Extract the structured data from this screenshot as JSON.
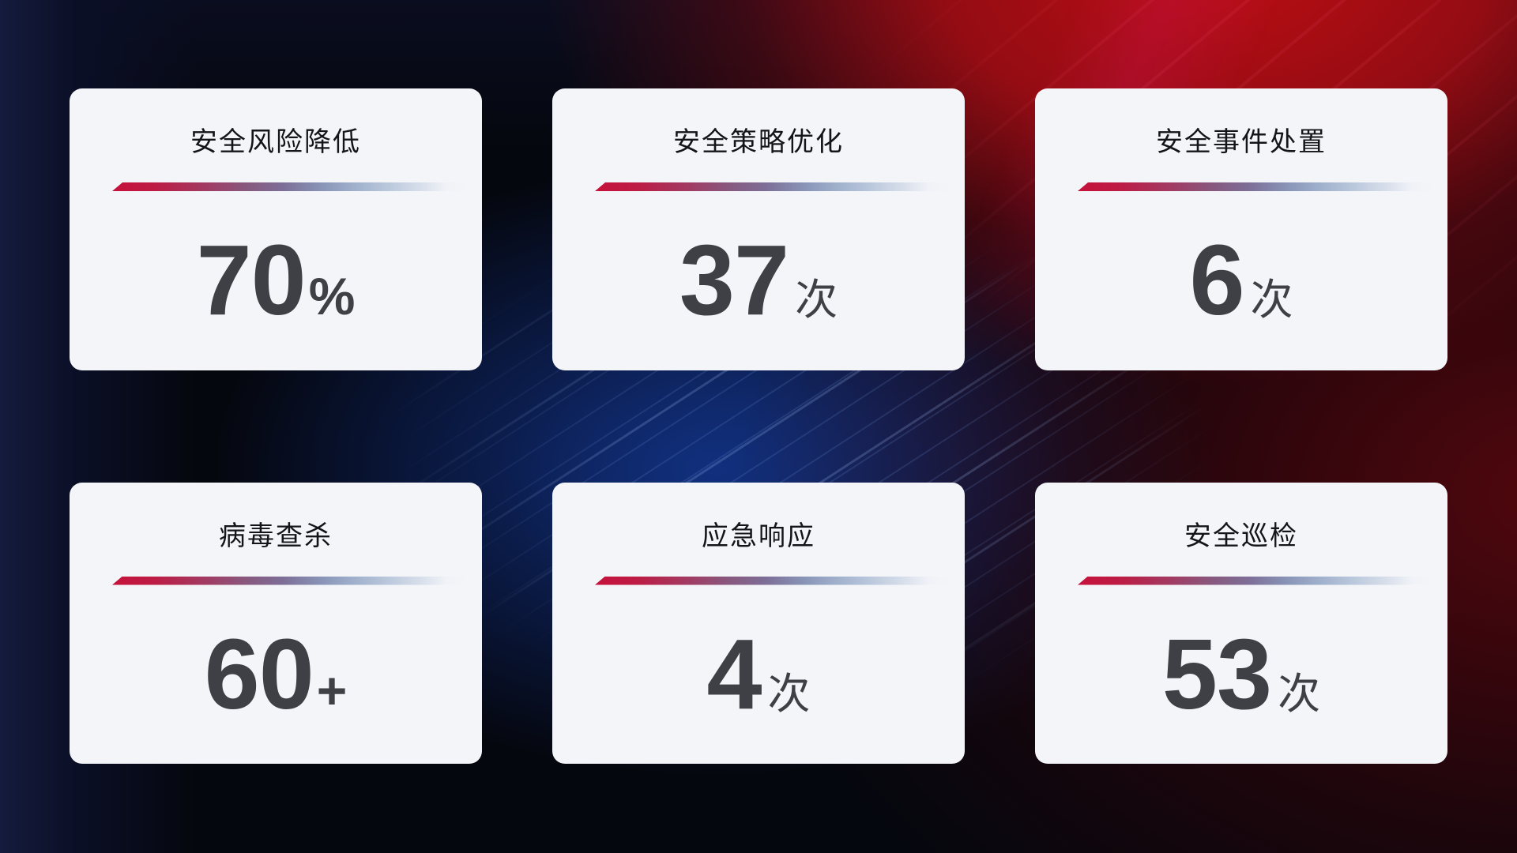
{
  "style": {
    "card_background": "#f4f5f8",
    "title_color": "#141519",
    "value_color": "#3e4046",
    "divider_gradient_start": "#c6113b",
    "divider_gradient_end": "#d8dfeb",
    "background_base": "#05070e",
    "background_red_glow": "#bb0e13",
    "background_blue_glow": "#12307f"
  },
  "cards": [
    {
      "title": "安全风险降低",
      "value": "70",
      "unit": "%"
    },
    {
      "title": "安全策略优化",
      "value": "37",
      "unit": "次"
    },
    {
      "title": "安全事件处置",
      "value": "6",
      "unit": "次"
    },
    {
      "title": "病毒查杀",
      "value": "60",
      "unit": "+"
    },
    {
      "title": "应急响应",
      "value": "4",
      "unit": "次"
    },
    {
      "title": "安全巡检",
      "value": "53",
      "unit": "次"
    }
  ]
}
